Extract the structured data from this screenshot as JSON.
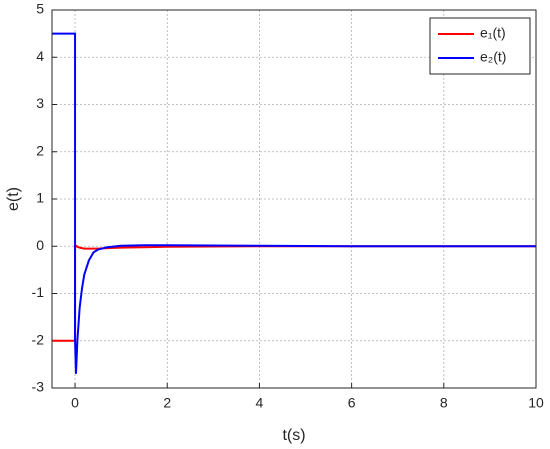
{
  "chart_data": {
    "type": "line",
    "x_label": "t(s)",
    "y_label": "e(t)",
    "x": [
      -0.5,
      0,
      0,
      0.02,
      0.05,
      0.1,
      0.15,
      0.2,
      0.3,
      0.4,
      0.5,
      0.7,
      1,
      1.5,
      2,
      4,
      6,
      8,
      10
    ],
    "series": [
      {
        "name": "e₁(t)",
        "color": "#ff0000",
        "values": [
          -2,
          -2,
          0,
          0.01,
          -0.01,
          -0.03,
          -0.04,
          -0.05,
          -0.05,
          -0.05,
          -0.05,
          -0.04,
          -0.03,
          -0.02,
          -0.01,
          0,
          0,
          0,
          0
        ]
      },
      {
        "name": "e₂(t)",
        "color": "#0000ff",
        "values": [
          4.5,
          4.5,
          -2.0,
          -2.7,
          -2.0,
          -1.3,
          -0.9,
          -0.6,
          -0.3,
          -0.13,
          -0.07,
          -0.02,
          0.01,
          0.02,
          0.02,
          0.01,
          0,
          0,
          0
        ]
      }
    ],
    "xlim": [
      -0.5,
      10
    ],
    "xticks": [
      0,
      2,
      4,
      6,
      8,
      10
    ],
    "ylim": [
      -3,
      5
    ],
    "yticks": [
      -3,
      -2,
      -1,
      0,
      1,
      2,
      3,
      4,
      5
    ],
    "grid": true,
    "legend": "top-right"
  }
}
